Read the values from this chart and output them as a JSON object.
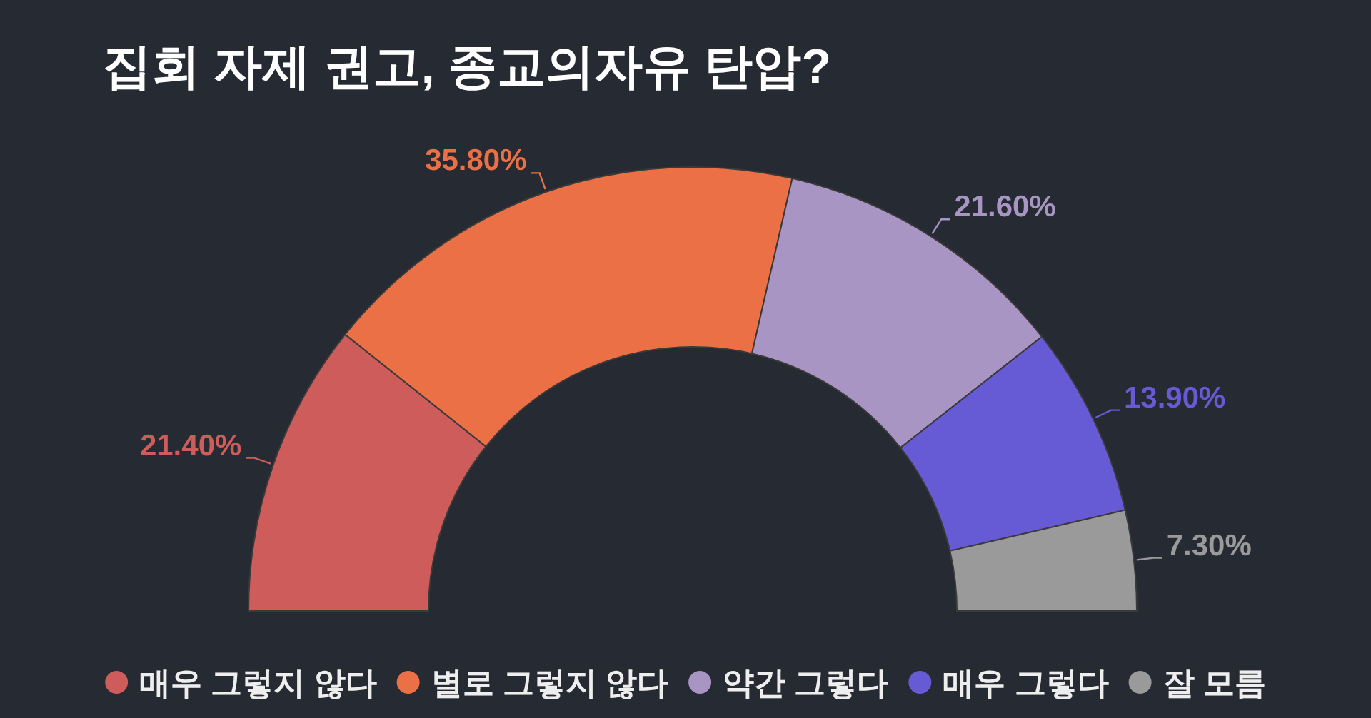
{
  "chart_data": {
    "type": "donut",
    "title": "집회 자제 권고, 종교의자유 탄압?",
    "categories": [
      "매우 그렇지 않다",
      "별로 그렇지 않다",
      "약간 그렇다",
      "매우 그렇다",
      "잘 모름"
    ],
    "values": [
      21.4,
      35.8,
      21.6,
      13.9,
      7.3
    ],
    "colors": [
      "#cd5c5a",
      "#ec7045",
      "#a895c3",
      "#675bd5",
      "#9a9a9a"
    ],
    "value_labels": [
      "21.40%",
      "35.80%",
      "21.60%",
      "13.90%",
      "7.30%"
    ],
    "legend": "bottom"
  }
}
